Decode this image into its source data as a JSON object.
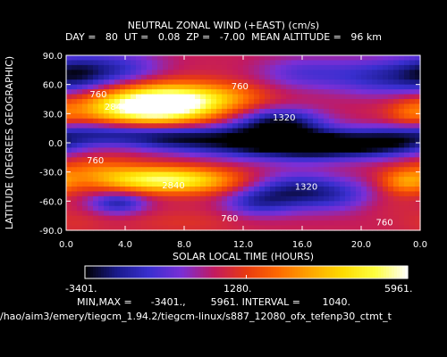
{
  "header": {
    "title": "NEUTRAL ZONAL WIND (+EAST) (cm/s)",
    "subtitle": "DAY =   80  UT =   0.08  ZP =   -7.00  MEAN ALTITUDE =   96 km"
  },
  "colorbar": {
    "min_label": "-3401.",
    "mid_label": "1280.",
    "max_label": "5961.",
    "stops": [
      "#000000",
      "#1a1a8c",
      "#3a2fd0",
      "#7a2fd6",
      "#c21a60",
      "#e83a10",
      "#ff6a00",
      "#ffa600",
      "#ffdc00",
      "#ffff40",
      "#ffffff"
    ]
  },
  "footer": {
    "minmax": "MIN,MAX =      -3401.,        5961. INTERVAL =       1040.",
    "path": "/hao/aim3/emery/tiegcm_1.94.2/tiegcm-linux/s887_12080_ofx_tefenp30_ctmt_t"
  },
  "chart_data": {
    "type": "heatmap",
    "title": "NEUTRAL ZONAL WIND (+EAST) (cm/s)",
    "xlabel": "SOLAR LOCAL TIME (HOURS)",
    "ylabel": "LATITUDE (DEGREES GEOGRAPHIC)",
    "xlim": [
      0,
      24
    ],
    "ylim": [
      -90,
      90
    ],
    "x_ticks": [
      "0.0",
      "4.0",
      "8.0",
      "12.0",
      "16.0",
      "20.0",
      "0.0"
    ],
    "y_ticks": [
      "90.0",
      "60.0",
      "30.0",
      "0.0",
      "-30.0",
      "-60.0",
      "-90.0"
    ],
    "min": -3401,
    "max": 5961,
    "interval": 1040,
    "contour_labels": [
      {
        "text": "760",
        "x": 1.6,
        "y": 47
      },
      {
        "text": "2840",
        "x": 2.6,
        "y": 34
      },
      {
        "text": "760",
        "x": 11.2,
        "y": 55
      },
      {
        "text": "1320",
        "x": 14.0,
        "y": 23
      },
      {
        "text": "760",
        "x": 1.4,
        "y": -21
      },
      {
        "text": "2840",
        "x": 6.5,
        "y": -47
      },
      {
        "text": "1320",
        "x": 15.5,
        "y": -48
      },
      {
        "text": "760",
        "x": 10.5,
        "y": -81
      },
      {
        "text": "760",
        "x": 21.0,
        "y": -85
      }
    ],
    "blobs": [
      {
        "x": 6.5,
        "y": 40,
        "sx": 2.8,
        "sy": 14,
        "v": 5961
      },
      {
        "x": 4.0,
        "y": 34,
        "sx": 3.2,
        "sy": 14,
        "v": 2800
      },
      {
        "x": 9.0,
        "y": 46,
        "sx": 2.2,
        "sy": 10,
        "v": 1600
      },
      {
        "x": 11.5,
        "y": 48,
        "sx": 1.8,
        "sy": 10,
        "v": 1400
      },
      {
        "x": 0.6,
        "y": 70,
        "sx": 1.6,
        "sy": 14,
        "v": -1400
      },
      {
        "x": 3.5,
        "y": 75,
        "sx": 2.2,
        "sy": 14,
        "v": -1600
      },
      {
        "x": 16.0,
        "y": 72,
        "sx": 2.2,
        "sy": 12,
        "v": -1000
      },
      {
        "x": 21.5,
        "y": 68,
        "sx": 2.6,
        "sy": 14,
        "v": -1800
      },
      {
        "x": 23.3,
        "y": 30,
        "sx": 1.0,
        "sy": 10,
        "v": 1600
      },
      {
        "x": 16.8,
        "y": 45,
        "sx": 1.8,
        "sy": 8,
        "v": 500
      },
      {
        "x": 2.5,
        "y": 10,
        "sx": 3.0,
        "sy": 9,
        "v": -2200
      },
      {
        "x": 7.2,
        "y": 5,
        "sx": 2.4,
        "sy": 9,
        "v": -1800
      },
      {
        "x": 13.0,
        "y": 2,
        "sx": 3.5,
        "sy": 12,
        "v": -3401
      },
      {
        "x": 17.5,
        "y": -3,
        "sx": 2.8,
        "sy": 10,
        "v": -3000
      },
      {
        "x": 14.5,
        "y": 22,
        "sx": 2.0,
        "sy": 10,
        "v": -2400
      },
      {
        "x": 22.0,
        "y": 0,
        "sx": 2.2,
        "sy": 10,
        "v": -2200
      },
      {
        "x": 6.5,
        "y": -38,
        "sx": 3.0,
        "sy": 9,
        "v": 5200
      },
      {
        "x": 2.0,
        "y": -28,
        "sx": 2.0,
        "sy": 10,
        "v": 1800
      },
      {
        "x": 10.5,
        "y": -42,
        "sx": 2.0,
        "sy": 10,
        "v": 1200
      },
      {
        "x": 3.5,
        "y": -62,
        "sx": 1.4,
        "sy": 8,
        "v": -2000
      },
      {
        "x": 15.5,
        "y": -50,
        "sx": 2.4,
        "sy": 13,
        "v": -2400
      },
      {
        "x": 12.8,
        "y": -62,
        "sx": 1.6,
        "sy": 10,
        "v": -1200
      },
      {
        "x": 19.0,
        "y": -55,
        "sx": 2.0,
        "sy": 12,
        "v": -700
      },
      {
        "x": 23.0,
        "y": -40,
        "sx": 1.2,
        "sy": 9,
        "v": 2800
      },
      {
        "x": 21.5,
        "y": -62,
        "sx": 1.6,
        "sy": 10,
        "v": 900
      },
      {
        "x": 0.6,
        "y": -82,
        "sx": 1.4,
        "sy": 10,
        "v": 900
      },
      {
        "x": 8.0,
        "y": -82,
        "sx": 2.8,
        "sy": 9,
        "v": 1000
      }
    ],
    "base_value": 500
  }
}
